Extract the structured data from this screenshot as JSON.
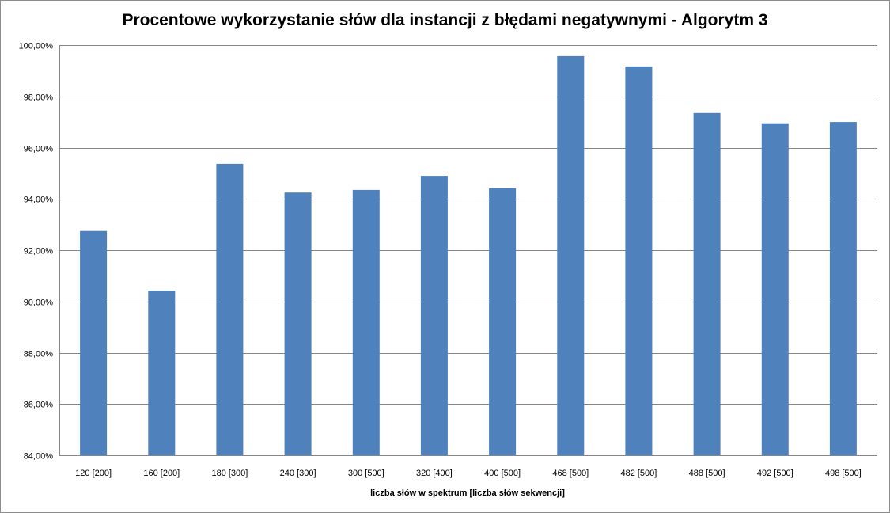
{
  "chart_data": {
    "type": "bar",
    "title": "Procentowe wykorzystanie słów dla instancji z błędami negatywnymi - Algorytm 3",
    "xlabel": "liczba słów w spektrum [liczba  słów sekwencji]",
    "ylabel": "",
    "categories": [
      "120 [200]",
      "160 [200]",
      "180 [300]",
      "240 [300]",
      "300 [500]",
      "320 [400]",
      "400 [500]",
      "468 [500]",
      "482 [500]",
      "488 [500]",
      "492 [500]",
      "498 [500]"
    ],
    "values": [
      92.75,
      90.42,
      95.37,
      94.25,
      94.35,
      94.9,
      94.42,
      99.57,
      99.17,
      97.35,
      96.95,
      97.0
    ],
    "ylim": [
      84,
      100
    ],
    "yticks": [
      84,
      86,
      88,
      90,
      92,
      94,
      96,
      98,
      100
    ],
    "ytick_labels": [
      "84,00%",
      "86,00%",
      "88,00%",
      "90,00%",
      "92,00%",
      "94,00%",
      "96,00%",
      "98,00%",
      "100,00%"
    ],
    "grid": true,
    "legend": "none",
    "bar_color": "#4f81bd",
    "grid_color": "#868686"
  }
}
